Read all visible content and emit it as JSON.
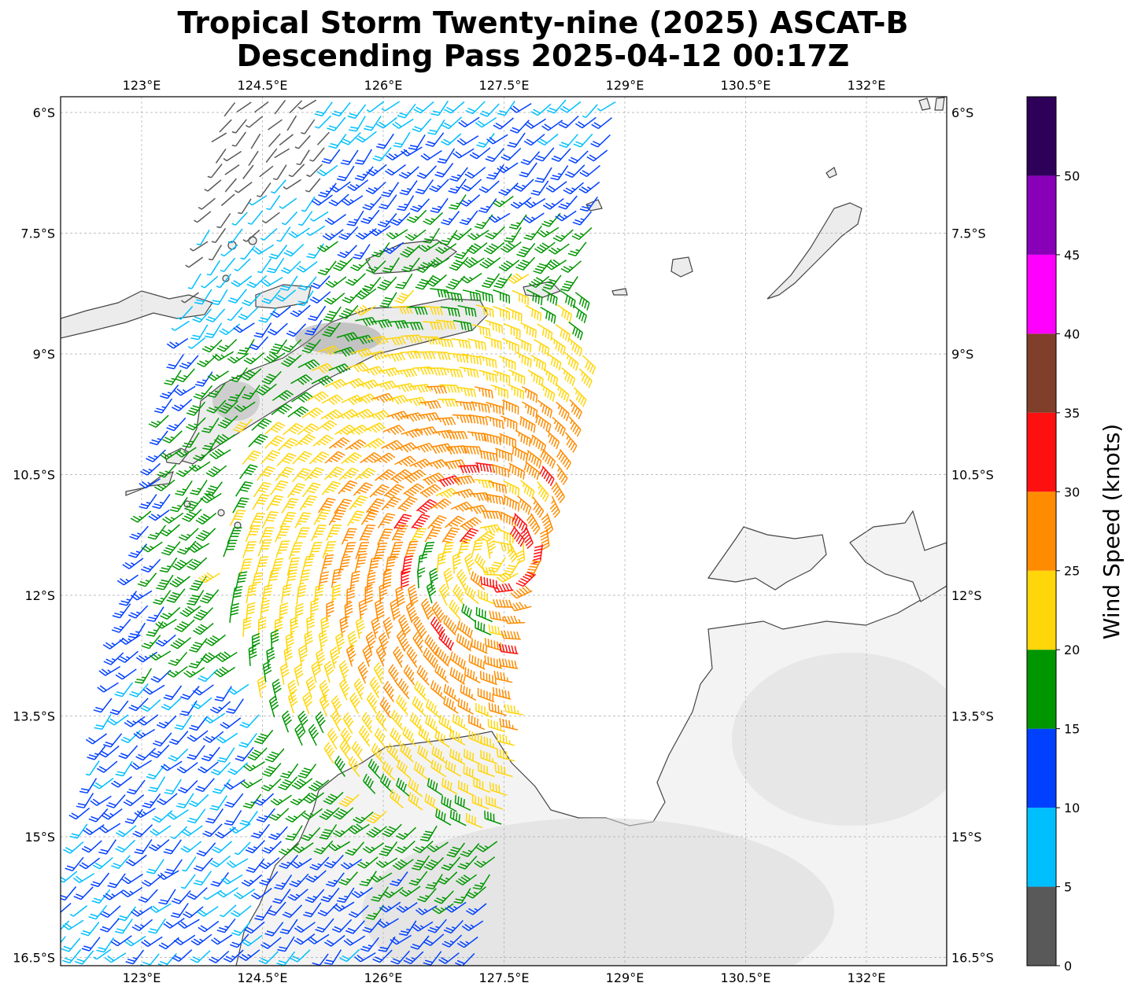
{
  "title": {
    "line1": "Tropical Storm Twenty-nine (2025) ASCAT-B",
    "line2": "Descending Pass 2025-04-12 00:17Z"
  },
  "axes": {
    "lon_ticks": [
      "123°E",
      "124.5°E",
      "126°E",
      "127.5°E",
      "129°E",
      "130.5°E",
      "132°E"
    ],
    "lat_ticks": [
      "6°S",
      "7.5°S",
      "9°S",
      "10.5°S",
      "12°S",
      "13.5°S",
      "15°S",
      "16.5°S"
    ]
  },
  "colorbar": {
    "label": "Wind Speed (knots)",
    "tick_labels": [
      "0",
      "5",
      "10",
      "15",
      "20",
      "25",
      "30",
      "35",
      "40",
      "45",
      "50"
    ],
    "colors": [
      "#595959",
      "#00bfff",
      "#0040ff",
      "#009600",
      "#ffd60a",
      "#ff8c00",
      "#ff1010",
      "#803f2a",
      "#ff00ff",
      "#8800b8",
      "#2f005a"
    ]
  },
  "storm_center": {
    "lon": "127.4°E",
    "lat": "11.5°S"
  }
}
